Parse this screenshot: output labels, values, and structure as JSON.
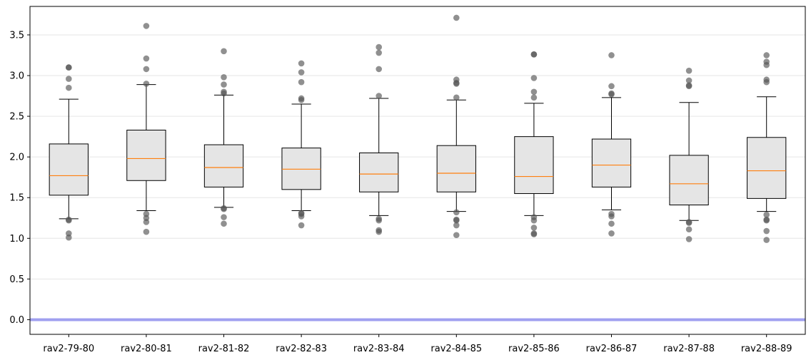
{
  "chart_data": {
    "type": "box",
    "title": "",
    "xlabel": "",
    "ylabel": "",
    "ylim": [
      -0.18,
      3.85
    ],
    "yticks": [
      "0.0",
      "0.5",
      "1.0",
      "1.5",
      "2.0",
      "2.5",
      "3.0",
      "3.5"
    ],
    "grid": "horizontal",
    "reference_line": {
      "y": 0.0,
      "color": "#a0a0f0"
    },
    "colors": {
      "box_fill": "#e5e5e5",
      "median": "#ff7f0e",
      "outlier": "#555555",
      "grid": "#e6e6e6"
    },
    "categories": [
      "rav2-79-80",
      "rav2-80-81",
      "rav2-81-82",
      "rav2-82-83",
      "rav2-83-84",
      "rav2-84-85",
      "rav2-85-86",
      "rav2-86-87",
      "rav2-87-88",
      "rav2-88-89"
    ],
    "boxes": [
      {
        "label": "rav2-79-80",
        "whislo": 1.24,
        "q1": 1.53,
        "med": 1.77,
        "q3": 2.16,
        "whishi": 2.71,
        "fliers": [
          1.01,
          1.06,
          1.22,
          1.23,
          2.85,
          2.96,
          3.1,
          3.1
        ]
      },
      {
        "label": "rav2-80-81",
        "whislo": 1.34,
        "q1": 1.71,
        "med": 1.98,
        "q3": 2.33,
        "whishi": 2.89,
        "fliers": [
          1.08,
          1.2,
          1.25,
          1.3,
          2.9,
          3.08,
          3.21,
          3.61
        ]
      },
      {
        "label": "rav2-81-82",
        "whislo": 1.38,
        "q1": 1.63,
        "med": 1.87,
        "q3": 2.15,
        "whishi": 2.76,
        "fliers": [
          1.18,
          1.26,
          1.36,
          1.37,
          2.78,
          2.8,
          2.89,
          2.98,
          3.3
        ]
      },
      {
        "label": "rav2-82-83",
        "whislo": 1.34,
        "q1": 1.6,
        "med": 1.85,
        "q3": 2.11,
        "whishi": 2.65,
        "fliers": [
          1.16,
          1.27,
          1.3,
          1.31,
          2.7,
          2.72,
          2.92,
          3.04,
          3.15
        ]
      },
      {
        "label": "rav2-83-84",
        "whislo": 1.28,
        "q1": 1.57,
        "med": 1.79,
        "q3": 2.05,
        "whishi": 2.72,
        "fliers": [
          1.08,
          1.1,
          1.22,
          1.24,
          2.75,
          3.08,
          3.28,
          3.35
        ]
      },
      {
        "label": "rav2-84-85",
        "whislo": 1.33,
        "q1": 1.57,
        "med": 1.8,
        "q3": 2.14,
        "whishi": 2.7,
        "fliers": [
          1.04,
          1.16,
          1.22,
          1.23,
          1.32,
          2.73,
          2.9,
          2.91,
          2.95,
          3.71
        ]
      },
      {
        "label": "rav2-85-86",
        "whislo": 1.28,
        "q1": 1.55,
        "med": 1.76,
        "q3": 2.25,
        "whishi": 2.66,
        "fliers": [
          1.05,
          1.06,
          1.13,
          1.22,
          1.26,
          2.73,
          2.8,
          2.97,
          3.26,
          3.26
        ]
      },
      {
        "label": "rav2-86-87",
        "whislo": 1.35,
        "q1": 1.63,
        "med": 1.9,
        "q3": 2.22,
        "whishi": 2.73,
        "fliers": [
          1.06,
          1.18,
          1.27,
          1.3,
          2.77,
          2.78,
          2.87,
          3.25
        ]
      },
      {
        "label": "rav2-87-88",
        "whislo": 1.22,
        "q1": 1.41,
        "med": 1.67,
        "q3": 2.02,
        "whishi": 2.67,
        "fliers": [
          0.99,
          1.11,
          1.19,
          1.2,
          2.87,
          2.88,
          2.94,
          3.06
        ]
      },
      {
        "label": "rav2-88-89",
        "whislo": 1.33,
        "q1": 1.49,
        "med": 1.83,
        "q3": 2.24,
        "whishi": 2.74,
        "fliers": [
          0.98,
          1.09,
          1.22,
          1.23,
          1.29,
          2.92,
          2.95,
          3.13,
          3.17,
          3.25
        ]
      }
    ]
  }
}
